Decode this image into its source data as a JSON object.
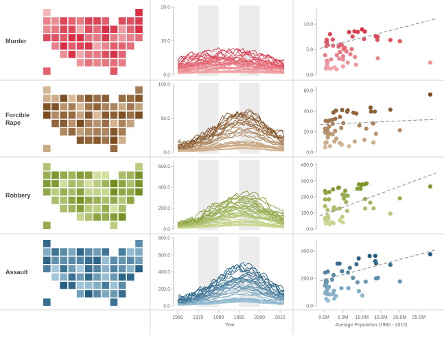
{
  "rows": [
    {
      "key": "murder",
      "label": "Murder",
      "color": "#d7263d",
      "light": "#f5b7b7",
      "ymax": 20,
      "yticks": [
        "0.0",
        "10.0",
        "20.0"
      ],
      "yvals": [
        0,
        10,
        20
      ],
      "sticks": [
        "0.0",
        "5.0",
        "10.0"
      ],
      "svals": [
        0,
        5,
        10
      ],
      "smax": 13
    },
    {
      "key": "rape",
      "label": "Forcible Rape",
      "color": "#7b4a1e",
      "light": "#e0c3a2",
      "ymax": 100,
      "yticks": [
        "0.0",
        "50.0",
        "100.0"
      ],
      "yvals": [
        0,
        50,
        100
      ],
      "sticks": [
        "0.0",
        "20.0",
        "40.0",
        "60.0"
      ],
      "svals": [
        0,
        20,
        40,
        60
      ],
      "smax": 64
    },
    {
      "key": "robbery",
      "label": "Robbery",
      "color": "#6f8a1a",
      "light": "#d6e3a4",
      "ymax": 650,
      "yticks": [
        "0.0",
        "200.0",
        "400.0",
        "600.0"
      ],
      "yvals": [
        0,
        200,
        400,
        600
      ],
      "sticks": [
        "0.0",
        "100.0",
        "200.0",
        "300.0",
        "400.0"
      ],
      "svals": [
        0,
        100,
        200,
        300,
        400
      ],
      "smax": 410
    },
    {
      "key": "assault",
      "label": "Assault",
      "color": "#1f5a80",
      "light": "#a9cde0",
      "ymax": 800,
      "yticks": [
        "0.0",
        "200.0",
        "400.0",
        "600.0",
        "800.0"
      ],
      "yvals": [
        0,
        200,
        400,
        600,
        800
      ],
      "sticks": [
        "0.0",
        "200.0",
        "400.0"
      ],
      "svals": [
        0,
        200,
        400
      ],
      "smax": 480
    }
  ],
  "line_x": {
    "ticks": [
      "1960",
      "1970",
      "1980",
      "1990",
      "2000",
      "2010"
    ],
    "tickvals": [
      1960,
      1970,
      1980,
      1990,
      2000,
      2010
    ],
    "min": 1958,
    "max": 2013,
    "label": "Year"
  },
  "scatter_x": {
    "ticks": [
      "0.0M",
      "5.0M",
      "10.0M",
      "15.0M",
      "20.0M",
      "25.0M"
    ],
    "tickvals": [
      0,
      5,
      10,
      15,
      20,
      25
    ],
    "min": -2,
    "max": 30,
    "label": "Average Population (1960 - 2012)"
  },
  "bands": [
    [
      1970,
      1980
    ],
    [
      1990,
      2000
    ]
  ],
  "chart_data": [
    {
      "type": "heatmap",
      "title": "",
      "description": "tile grid map of states per crime"
    },
    {
      "type": "line",
      "title": "",
      "xlabel": "Year",
      "ylabel": "",
      "series_by": "state"
    },
    {
      "type": "scatter",
      "title": "",
      "xlabel": "Average Population (1960 - 2012)",
      "ylabel": "",
      "trendline": true
    }
  ]
}
